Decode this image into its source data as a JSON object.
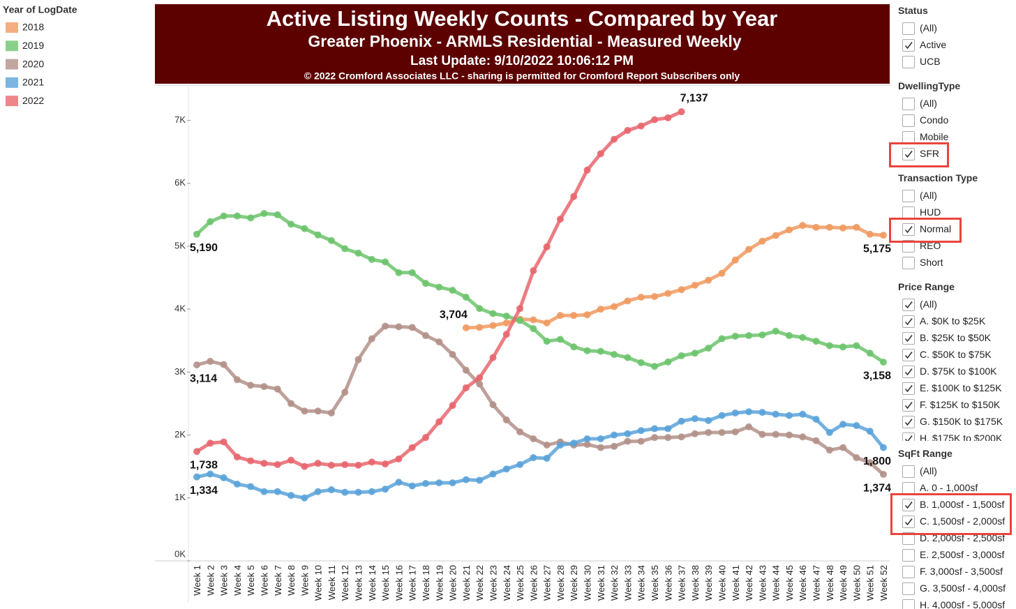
{
  "chart_data": {
    "type": "line",
    "title": "Active Listing Weekly Counts - Compared by Year",
    "subtitle": "Greater Phoenix - ARMLS Residential - Measured Weekly",
    "update": "Last Update: 9/10/2022 10:06:12 PM",
    "copyright": "© 2022 Cromford Associates LLC - sharing is permitted for Cromford Report Subscribers only",
    "legend_title": "Year of LogDate",
    "categories": [
      "Week 1",
      "Week 2",
      "Week 3",
      "Week 4",
      "Week 5",
      "Week 6",
      "Week 7",
      "Week 8",
      "Week 9",
      "Week 10",
      "Week 11",
      "Week 12",
      "Week 13",
      "Week 14",
      "Week 15",
      "Week 16",
      "Week 17",
      "Week 18",
      "Week 19",
      "Week 20",
      "Week 21",
      "Week 22",
      "Week 23",
      "Week 24",
      "Week 25",
      "Week 26",
      "Week 27",
      "Week 28",
      "Week 29",
      "Week 30",
      "Week 31",
      "Week 32",
      "Week 33",
      "Week 34",
      "Week 35",
      "Week 36",
      "Week 37",
      "Week 38",
      "Week 39",
      "Week 40",
      "Week 41",
      "Week 42",
      "Week 43",
      "Week 44",
      "Week 45",
      "Week 46",
      "Week 47",
      "Week 48",
      "Week 49",
      "Week 50",
      "Week 51",
      "Week 52"
    ],
    "ylim": [
      0,
      7560
    ],
    "yticks": [
      {
        "value": 0,
        "label": "0K"
      },
      {
        "value": 1000,
        "label": "1K"
      },
      {
        "value": 2000,
        "label": "2K"
      },
      {
        "value": 3000,
        "label": "3K"
      },
      {
        "value": 4000,
        "label": "4K"
      },
      {
        "value": 5000,
        "label": "5K"
      },
      {
        "value": 6000,
        "label": "6K"
      },
      {
        "value": 7000,
        "label": "7K"
      }
    ],
    "series": [
      {
        "name": "2018",
        "color": "#f09a62",
        "values": [
          null,
          null,
          null,
          null,
          null,
          null,
          null,
          null,
          null,
          null,
          null,
          null,
          null,
          null,
          null,
          null,
          null,
          null,
          null,
          null,
          3704,
          3710,
          3740,
          3780,
          3840,
          3830,
          3780,
          3900,
          3900,
          3910,
          4000,
          4040,
          4130,
          4190,
          4200,
          4250,
          4310,
          4380,
          4460,
          4570,
          4780,
          4950,
          5080,
          5170,
          5260,
          5330,
          5300,
          5300,
          5290,
          5300,
          5190,
          5175
        ],
        "value_labels": [
          null,
          null,
          null,
          null,
          null,
          null,
          null,
          null,
          null,
          null,
          null,
          null,
          null,
          null,
          null,
          null,
          null,
          null,
          null,
          null,
          "3,704",
          null,
          null,
          null,
          null,
          null,
          null,
          null,
          null,
          null,
          null,
          null,
          null,
          null,
          null,
          null,
          null,
          null,
          null,
          null,
          null,
          null,
          null,
          null,
          null,
          null,
          null,
          null,
          null,
          null,
          null,
          "5,175"
        ]
      },
      {
        "name": "2019",
        "color": "#6dc46d",
        "values": [
          5190,
          5390,
          5480,
          5480,
          5450,
          5520,
          5500,
          5350,
          5280,
          5180,
          5090,
          4960,
          4890,
          4790,
          4750,
          4580,
          4580,
          4410,
          4350,
          4300,
          4190,
          4010,
          3930,
          3890,
          3820,
          3690,
          3490,
          3520,
          3400,
          3340,
          3330,
          3280,
          3230,
          3150,
          3090,
          3160,
          3260,
          3300,
          3380,
          3530,
          3570,
          3580,
          3590,
          3650,
          3580,
          3550,
          3490,
          3420,
          3400,
          3420,
          3300,
          3158
        ],
        "value_labels": [
          "5,190",
          null,
          null,
          null,
          null,
          null,
          null,
          null,
          null,
          null,
          null,
          null,
          null,
          null,
          null,
          null,
          null,
          null,
          null,
          null,
          null,
          null,
          null,
          null,
          null,
          null,
          null,
          null,
          null,
          null,
          null,
          null,
          null,
          null,
          null,
          null,
          null,
          null,
          null,
          null,
          null,
          null,
          null,
          null,
          null,
          null,
          null,
          null,
          null,
          null,
          null,
          "3,158"
        ]
      },
      {
        "name": "2020",
        "color": "#b39189",
        "values": [
          3114,
          3170,
          3120,
          2880,
          2790,
          2770,
          2730,
          2500,
          2380,
          2380,
          2350,
          2680,
          3200,
          3530,
          3730,
          3720,
          3710,
          3580,
          3480,
          3280,
          3030,
          2810,
          2480,
          2240,
          2050,
          1940,
          1840,
          1890,
          1840,
          1850,
          1800,
          1820,
          1900,
          1900,
          1960,
          1960,
          1970,
          2020,
          2040,
          2040,
          2050,
          2130,
          2010,
          2010,
          2000,
          1970,
          1910,
          1760,
          1800,
          1640,
          1560,
          1374
        ],
        "value_labels": [
          "3,114",
          null,
          null,
          null,
          null,
          null,
          null,
          null,
          null,
          null,
          null,
          null,
          null,
          null,
          null,
          null,
          null,
          null,
          null,
          null,
          null,
          null,
          null,
          null,
          null,
          null,
          null,
          null,
          null,
          null,
          null,
          null,
          null,
          null,
          null,
          null,
          null,
          null,
          null,
          null,
          null,
          null,
          null,
          null,
          null,
          null,
          null,
          null,
          null,
          null,
          null,
          "1,374"
        ]
      },
      {
        "name": "2021",
        "color": "#5ba3d9",
        "values": [
          1334,
          1380,
          1320,
          1220,
          1180,
          1100,
          1100,
          1040,
          1000,
          1100,
          1130,
          1090,
          1090,
          1100,
          1140,
          1250,
          1190,
          1230,
          1240,
          1240,
          1290,
          1280,
          1380,
          1460,
          1530,
          1640,
          1630,
          1840,
          1870,
          1940,
          1940,
          2000,
          2020,
          2070,
          2100,
          2100,
          2220,
          2260,
          2230,
          2310,
          2350,
          2370,
          2360,
          2330,
          2310,
          2330,
          2250,
          2040,
          2170,
          2150,
          2060,
          1800
        ],
        "value_labels": [
          "1,334",
          null,
          null,
          null,
          null,
          null,
          null,
          null,
          null,
          null,
          null,
          null,
          null,
          null,
          null,
          null,
          null,
          null,
          null,
          null,
          null,
          null,
          null,
          null,
          null,
          null,
          null,
          null,
          null,
          null,
          null,
          null,
          null,
          null,
          null,
          null,
          null,
          null,
          null,
          null,
          null,
          null,
          null,
          null,
          null,
          null,
          null,
          null,
          null,
          null,
          null,
          "1,800"
        ]
      },
      {
        "name": "2022",
        "color": "#e8666e",
        "values": [
          1738,
          1870,
          1890,
          1650,
          1590,
          1550,
          1530,
          1600,
          1500,
          1550,
          1520,
          1530,
          1520,
          1570,
          1540,
          1620,
          1800,
          1960,
          2210,
          2470,
          2750,
          2910,
          3230,
          3600,
          4010,
          4610,
          4990,
          5430,
          5790,
          6210,
          6470,
          6700,
          6840,
          6910,
          7010,
          7040,
          7137,
          null,
          null,
          null,
          null,
          null,
          null,
          null,
          null,
          null,
          null,
          null,
          null,
          null,
          null,
          null
        ],
        "value_labels": [
          "1,738",
          null,
          null,
          null,
          null,
          null,
          null,
          null,
          null,
          null,
          null,
          null,
          null,
          null,
          null,
          null,
          null,
          null,
          null,
          null,
          null,
          null,
          null,
          null,
          null,
          null,
          null,
          null,
          null,
          null,
          null,
          null,
          null,
          null,
          null,
          null,
          "7,137",
          null,
          null,
          null,
          null,
          null,
          null,
          null,
          null,
          null,
          null,
          null,
          null,
          null,
          null,
          null
        ]
      }
    ]
  },
  "filters": [
    {
      "title": "Status",
      "options": [
        {
          "label": "(All)",
          "checked": false
        },
        {
          "label": "Active",
          "checked": true
        },
        {
          "label": "UCB",
          "checked": false
        }
      ]
    },
    {
      "title": "DwellingType",
      "options": [
        {
          "label": "(All)",
          "checked": false
        },
        {
          "label": "Condo",
          "checked": false
        },
        {
          "label": "Mobile",
          "checked": false
        },
        {
          "label": "SFR",
          "checked": true,
          "highlighted": true
        }
      ]
    },
    {
      "title": "Transaction Type",
      "options": [
        {
          "label": "(All)",
          "checked": false
        },
        {
          "label": "HUD",
          "checked": false
        },
        {
          "label": "Normal",
          "checked": true,
          "highlighted": true
        },
        {
          "label": "REO",
          "checked": false
        },
        {
          "label": "Short",
          "checked": false
        }
      ]
    },
    {
      "title": "Price Range",
      "options": [
        {
          "label": "(All)",
          "checked": true
        },
        {
          "label": "A. $0K to $25K",
          "checked": true
        },
        {
          "label": "B. $25K to $50K",
          "checked": true
        },
        {
          "label": "C. $50K to $75K",
          "checked": true
        },
        {
          "label": "D. $75K to $100K",
          "checked": true
        },
        {
          "label": "E. $100K to $125K",
          "checked": true
        },
        {
          "label": "F. $125K to $150K",
          "checked": true
        },
        {
          "label": "G. $150K to $175K",
          "checked": true
        },
        {
          "label": "H. $175K to $200K",
          "checked": true
        }
      ]
    },
    {
      "title": "SqFt Range",
      "options": [
        {
          "label": "(All)",
          "checked": false
        },
        {
          "label": "A. 0 - 1,000sf",
          "checked": false
        },
        {
          "label": "B. 1,000sf - 1,500sf",
          "checked": true,
          "highlighted": true
        },
        {
          "label": "C. 1,500sf - 2,000sf",
          "checked": true,
          "highlighted": true
        },
        {
          "label": "D. 2,000sf - 2,500sf",
          "checked": false
        },
        {
          "label": "E. 2,500sf - 3,000sf",
          "checked": false
        },
        {
          "label": "F. 3,000sf - 3,500sf",
          "checked": false
        },
        {
          "label": "G. 3,500sf - 4,000sf",
          "checked": false
        },
        {
          "label": "H. 4,000sf - 5,000sf",
          "checked": false
        }
      ]
    }
  ]
}
